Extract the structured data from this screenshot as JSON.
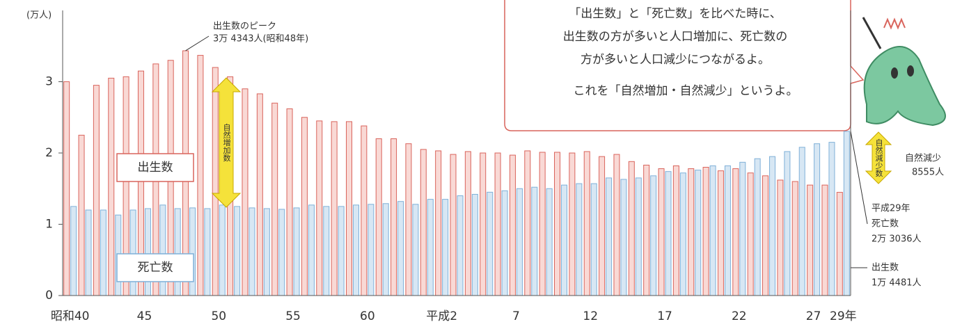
{
  "chart_data": {
    "type": "bar",
    "unit_label": "(万人)",
    "categories": [
      "昭和40",
      null,
      null,
      null,
      null,
      "45",
      null,
      null,
      null,
      null,
      "50",
      null,
      null,
      null,
      null,
      "55",
      null,
      null,
      null,
      null,
      "60",
      null,
      null,
      null,
      null,
      "平成2",
      null,
      null,
      null,
      null,
      "7",
      null,
      null,
      null,
      null,
      "12",
      null,
      null,
      null,
      null,
      "17",
      null,
      null,
      null,
      null,
      "22",
      null,
      null,
      null,
      null,
      "27",
      null,
      "29年"
    ],
    "series": [
      {
        "name": "出生数",
        "color": "#f9d9d5",
        "edge_color": "#d9645c",
        "values": [
          3.0,
          2.25,
          2.95,
          3.05,
          3.07,
          3.15,
          3.25,
          3.3,
          3.4343,
          3.37,
          3.2,
          3.07,
          2.9,
          2.83,
          2.7,
          2.62,
          2.5,
          2.45,
          2.44,
          2.44,
          2.38,
          2.2,
          2.2,
          2.13,
          2.05,
          2.03,
          1.98,
          2.02,
          2.0,
          2.0,
          1.97,
          2.03,
          2.01,
          2.01,
          2.0,
          2.02,
          1.95,
          1.98,
          1.88,
          1.83,
          1.78,
          1.82,
          1.78,
          1.8,
          1.75,
          1.78,
          1.72,
          1.68,
          1.62,
          1.6,
          1.55,
          1.55,
          1.4481
        ]
      },
      {
        "name": "死亡数",
        "color": "#d7e7f4",
        "edge_color": "#7fb0d8",
        "values": [
          1.25,
          1.2,
          1.2,
          1.13,
          1.2,
          1.22,
          1.27,
          1.22,
          1.23,
          1.22,
          1.27,
          1.25,
          1.23,
          1.22,
          1.21,
          1.23,
          1.27,
          1.25,
          1.25,
          1.27,
          1.28,
          1.29,
          1.32,
          1.28,
          1.35,
          1.35,
          1.4,
          1.42,
          1.45,
          1.47,
          1.5,
          1.52,
          1.5,
          1.55,
          1.57,
          1.57,
          1.65,
          1.63,
          1.65,
          1.68,
          1.74,
          1.72,
          1.76,
          1.82,
          1.82,
          1.87,
          1.92,
          1.95,
          2.02,
          2.08,
          2.13,
          2.15,
          2.3036
        ]
      }
    ],
    "ylim": [
      0,
      4
    ],
    "yticks": [
      0,
      1,
      2,
      3
    ],
    "grid": false,
    "peak_note": [
      "出生数のピーク",
      "3万 4343人(昭和48年)"
    ],
    "increase_arrow_label": "自然増加数",
    "decrease_arrow_label": "自然減少数",
    "decrease_note": [
      "自然減少",
      "8555人"
    ],
    "deaths_note": [
      "平成29年",
      "死亡数",
      "2万 3036人"
    ],
    "births_note": [
      "出生数",
      "1万 4481人"
    ],
    "bubble": [
      "「出生数」と「死亡数」を比べた時に、",
      "出生数の方が多いと人口増加に、死亡数の",
      "方が多いと人口減少につながるよ。",
      "これを「自然増加・自然減少」というよ。"
    ]
  }
}
